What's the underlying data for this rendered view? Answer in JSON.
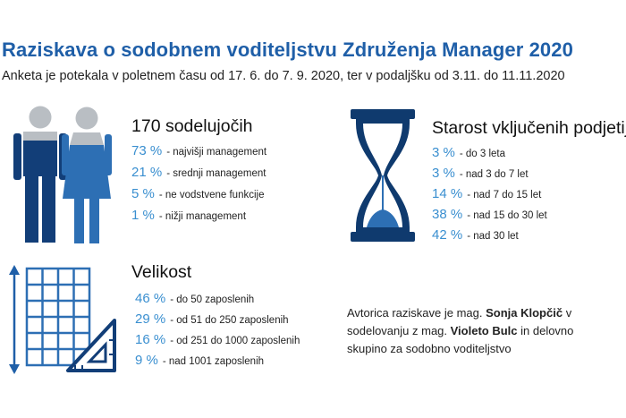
{
  "title": "Raziskava o sodobnem voditeljstvu Združenja Manager 2020",
  "subtitle": "Anketa je potekala v poletnem času od 17. 6. do 7. 9. 2020, ter v podaljšku od 3.11. do 11.11.2020",
  "participants": {
    "heading": "170 sodelujočih",
    "icon": "people-icon",
    "items": [
      {
        "pct": "73 %",
        "label": "- najvišji management"
      },
      {
        "pct": "21 %",
        "label": "- srednji management"
      },
      {
        "pct": "5 %",
        "label": "- ne vodstvene funkcije"
      },
      {
        "pct": "1 %",
        "label": "- nižji management"
      }
    ]
  },
  "age": {
    "heading": "Starost vključenih podjetij",
    "icon": "hourglass-icon",
    "items": [
      {
        "pct": "3 %",
        "label": "- do 3 leta"
      },
      {
        "pct": "3 %",
        "label": "- nad 3 do 7 let"
      },
      {
        "pct": "14 %",
        "label": "- nad 7 do 15 let"
      },
      {
        "pct": "38 %",
        "label": "- nad 15 do 30 let"
      },
      {
        "pct": "42 %",
        "label": "- nad 30 let"
      }
    ]
  },
  "size": {
    "heading": "Velikost",
    "icon": "blueprint-ruler-icon",
    "items": [
      {
        "pct": "46 %",
        "label": "- do 50 zaposlenih"
      },
      {
        "pct": "29 %",
        "label": "- od 51 do 250 zaposlenih"
      },
      {
        "pct": "16 %",
        "label": "- od 251 do 1000 zaposlenih"
      },
      {
        "pct": "9 %",
        "label": "- nad 1001 zaposlenih"
      }
    ]
  },
  "author": {
    "part1": "Avtorica raziskave je mag. ",
    "name1": "Sonja Klopčič",
    "part2": " v sodelovanju z mag. ",
    "name2": "Violeto Bulc",
    "part3": " in delovno skupino za sodobno voditeljstvo"
  },
  "colors": {
    "title": "#1f5fa8",
    "percent": "#3a8fd0",
    "person_grey": "#b9bec3",
    "person_dark": "#123e78",
    "person_blue": "#2d6fb4",
    "icon_navy": "#0f3a6e"
  }
}
